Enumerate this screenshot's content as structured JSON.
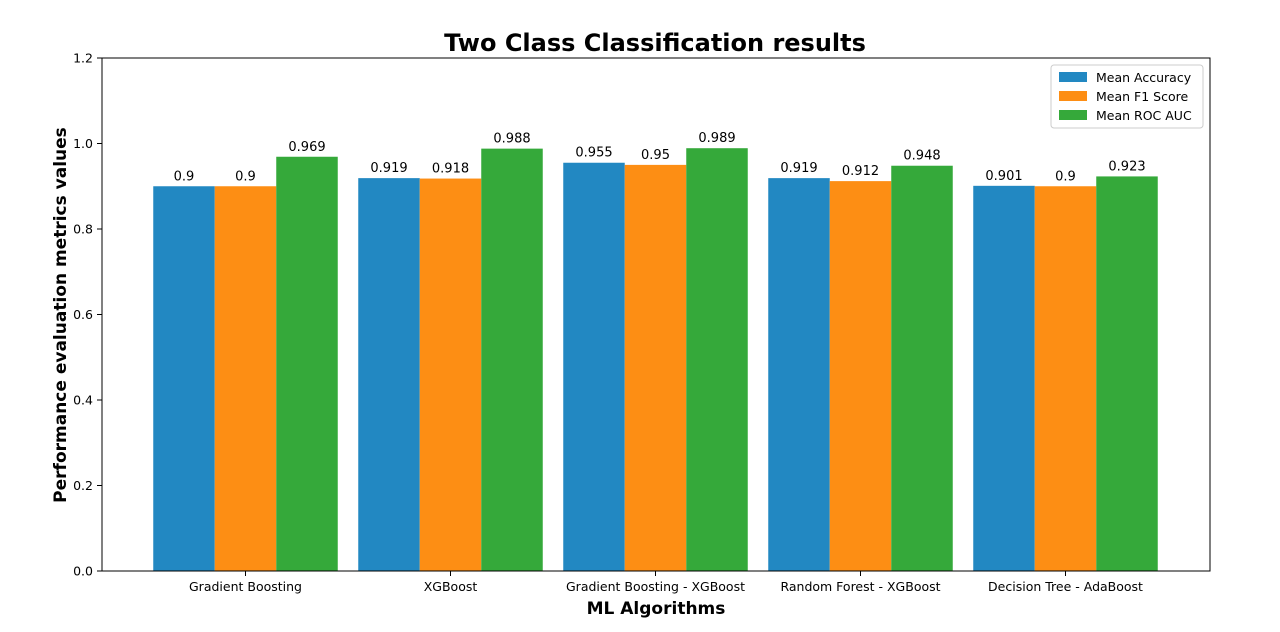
{
  "chart_data": {
    "type": "bar",
    "title": "Two Class Classification results",
    "xlabel": "ML Algorithms",
    "ylabel": "Performance evaluation metrics values",
    "categories": [
      "Gradient Boosting",
      "XGBoost",
      "Gradient Boosting - XGBoost",
      "Random Forest - XGBoost",
      "Decision Tree - AdaBoost"
    ],
    "series": [
      {
        "name": "Mean Accuracy",
        "color": "#2288c2",
        "values": [
          0.9,
          0.919,
          0.955,
          0.919,
          0.901
        ],
        "labels": [
          "0.9",
          "0.919",
          "0.955",
          "0.919",
          "0.901"
        ]
      },
      {
        "name": "Mean F1 Score",
        "color": "#fd8e14",
        "values": [
          0.9,
          0.918,
          0.95,
          0.912,
          0.9
        ],
        "labels": [
          "0.9",
          "0.918",
          "0.95",
          "0.912",
          "0.9"
        ]
      },
      {
        "name": "Mean ROC AUC",
        "color": "#35a93a",
        "values": [
          0.969,
          0.988,
          0.989,
          0.948,
          0.923
        ],
        "labels": [
          "0.969",
          "0.988",
          "0.989",
          "0.948",
          "0.923"
        ]
      }
    ],
    "ylim": [
      0,
      1.2
    ],
    "yticks": [
      "0.0",
      "0.2",
      "0.4",
      "0.6",
      "0.8",
      "1.0",
      "1.2"
    ],
    "grid": false,
    "legend_position": "top-right"
  }
}
